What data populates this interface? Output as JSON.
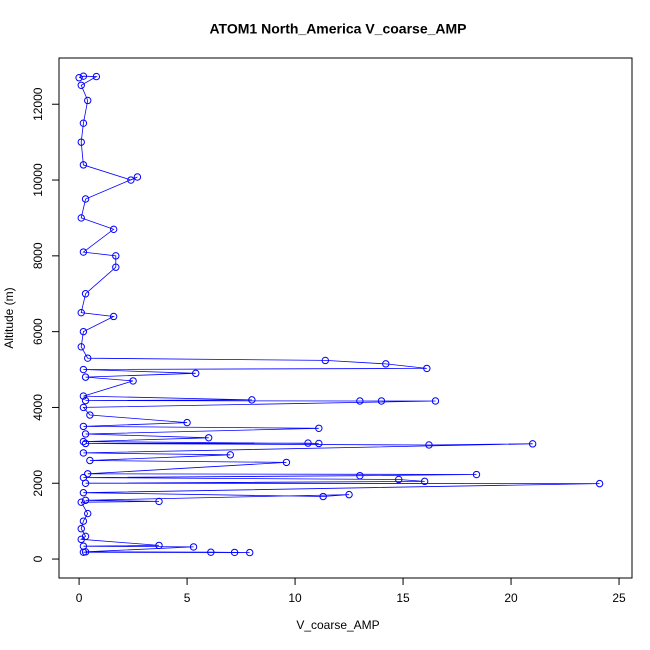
{
  "chart_data": {
    "type": "line",
    "markers": true,
    "title": "ATOM1 North_America V_coarse_AMP",
    "x_label": "V_coarse_AMP",
    "y_label": "Altitude (m)",
    "color": "#0000ff",
    "xlim": [
      -0.93,
      25.6
    ],
    "ylim": [
      -500,
      13220
    ],
    "xticks": [
      0,
      5,
      10,
      15,
      20,
      25
    ],
    "yticks": [
      0,
      2000,
      4000,
      6000,
      8000,
      10000,
      12000
    ],
    "x": [
      0.2,
      7.9,
      7.2,
      6.1,
      0.3,
      5.3,
      0.2,
      3.7,
      0.1,
      0.3,
      0.1,
      0.2,
      0.4,
      0.1,
      3.7,
      0.3,
      12.5,
      11.3,
      0.2,
      24.1,
      0.3,
      16.0,
      14.8,
      0.2,
      13.0,
      18.4,
      0.4,
      9.6,
      0.5,
      7.0,
      0.2,
      21.0,
      16.2,
      0.3,
      10.6,
      11.1,
      0.2,
      6.0,
      0.3,
      11.1,
      0.2,
      5.0,
      0.5,
      0.2,
      16.5,
      14.0,
      13.0,
      0.3,
      8.0,
      0.2,
      2.5,
      0.3,
      5.4,
      0.2,
      16.1,
      14.2,
      11.4,
      0.4,
      0.1,
      0.2,
      1.6,
      0.1,
      0.3,
      1.7,
      1.7,
      0.2,
      1.6,
      0.1,
      0.3,
      2.7,
      2.4,
      0.2,
      0.1,
      0.2,
      0.4,
      0.1,
      0.8,
      0.2,
      0.0
    ],
    "values": [
      180,
      170,
      175,
      180,
      190,
      320,
      340,
      360,
      520,
      600,
      800,
      1000,
      1200,
      1500,
      1520,
      1550,
      1700,
      1650,
      1750,
      1990,
      2000,
      2050,
      2100,
      2150,
      2200,
      2230,
      2250,
      2550,
      2600,
      2750,
      2800,
      3040,
      3010,
      3050,
      3060,
      3050,
      3100,
      3200,
      3300,
      3450,
      3500,
      3600,
      3800,
      4000,
      4170,
      4170,
      4170,
      4180,
      4200,
      4300,
      4700,
      4800,
      4900,
      5000,
      5030,
      5150,
      5240,
      5300,
      5600,
      6000,
      6400,
      6500,
      7000,
      7700,
      8000,
      8100,
      8700,
      9000,
      9500,
      10080,
      10000,
      10400,
      11000,
      11500,
      12100,
      12500,
      12730,
      12740,
      12700
    ]
  }
}
